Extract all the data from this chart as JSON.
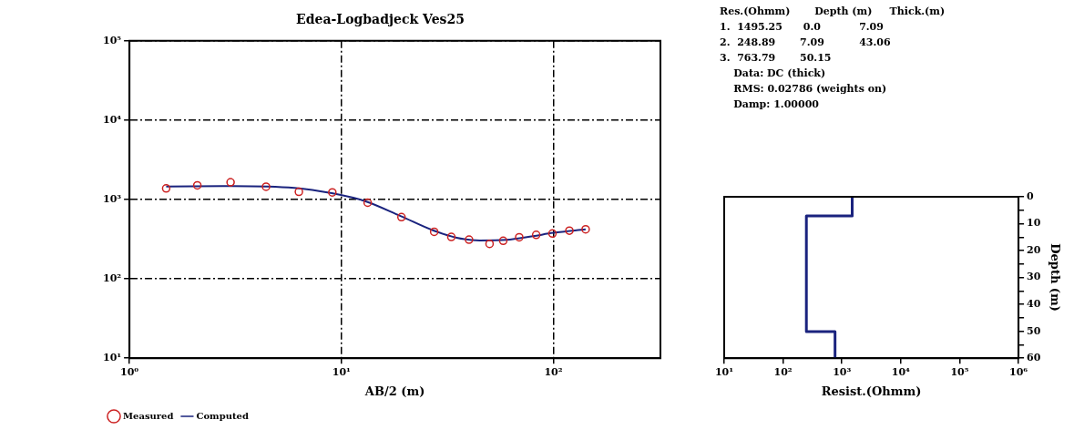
{
  "chart_data": [
    {
      "type": "line",
      "title": "Edea-Logbadjeck Ves25",
      "xlabel": "AB/2 (m)",
      "log": "xy",
      "grid": true,
      "legend": "bottom left",
      "xlim": [
        1,
        320
      ],
      "xticks": [
        {
          "value": 1,
          "label": "10⁰"
        },
        {
          "value": 10,
          "label": "10¹"
        },
        {
          "value": 100,
          "label": "10²"
        }
      ],
      "ylim": [
        10,
        100000
      ],
      "yticks": [
        {
          "value": 10,
          "label": "10¹"
        },
        {
          "value": 100,
          "label": "10²"
        },
        {
          "value": 1000,
          "label": "10³"
        },
        {
          "value": 10000,
          "label": "10⁴"
        },
        {
          "value": 100000,
          "label": "10⁵"
        }
      ],
      "series": [
        {
          "name": "Measured",
          "type": "scatter",
          "marker": "circle",
          "color": "#cc2222",
          "x": [
            1.49,
            2.09,
            3.0,
            4.41,
            6.3,
            9.06,
            13.3,
            19.2,
            27.4,
            33,
            40,
            50,
            58,
            69,
            83,
            99,
            119,
            142
          ],
          "values": [
            1380,
            1510,
            1650,
            1450,
            1250,
            1230,
            912,
            600,
            392,
            338,
            312,
            276,
            302,
            334,
            358,
            373,
            405,
            421
          ]
        },
        {
          "name": "Computed",
          "type": "line",
          "marker": "none",
          "color": "#1a237e",
          "x": [
            1.49,
            3,
            6,
            9,
            13,
            19,
            27,
            35,
            45,
            60,
            80,
            100,
            142
          ],
          "values": [
            1460,
            1480,
            1400,
            1200,
            950,
            620,
            410,
            330,
            305,
            310,
            345,
            380,
            420
          ]
        }
      ]
    },
    {
      "type": "other",
      "annotations": [
        "Res.(Ohmm)       Depth (m)     Thick.(m)",
        "1.  1495.25      0.0           7.09",
        "2.  248.89       7.09          43.06",
        "3.  763.79       50.15",
        "    Data: DC (thick)",
        "    RMS: 0.02786 (weights on)",
        "    Damp: 1.00000"
      ]
    },
    {
      "type": "line",
      "xlabel": "Resist.(Ohmm)",
      "y2label": "Depth (m)",
      "log": "x",
      "grid": false,
      "xlim": [
        10,
        1000000
      ],
      "xticks": [
        {
          "value": 10,
          "label": "10¹"
        },
        {
          "value": 100,
          "label": "10²"
        },
        {
          "value": 1000,
          "label": "10³"
        },
        {
          "value": 10000,
          "label": "10⁴"
        },
        {
          "value": 100000,
          "label": "10⁵"
        },
        {
          "value": 1000000,
          "label": "10⁶"
        }
      ],
      "y2lim": [
        60,
        0
      ],
      "y2ticks": [
        0,
        {
          "value": 5,
          "label": null
        },
        10,
        {
          "value": 15,
          "label": null
        },
        20,
        {
          "value": 25,
          "label": null
        },
        30,
        {
          "value": 35,
          "label": null
        },
        40,
        {
          "value": 45,
          "label": null
        },
        50,
        {
          "value": 55,
          "label": null
        },
        60
      ],
      "series": [
        {
          "type": "line",
          "axis": "y2",
          "marker": "none",
          "color": "#1a237e",
          "x": [
            1495.25,
            1495.25,
            248.89,
            248.89,
            763.79,
            763.79
          ],
          "values": [
            0,
            7.09,
            7.09,
            50.15,
            50.15,
            60
          ]
        }
      ]
    }
  ]
}
